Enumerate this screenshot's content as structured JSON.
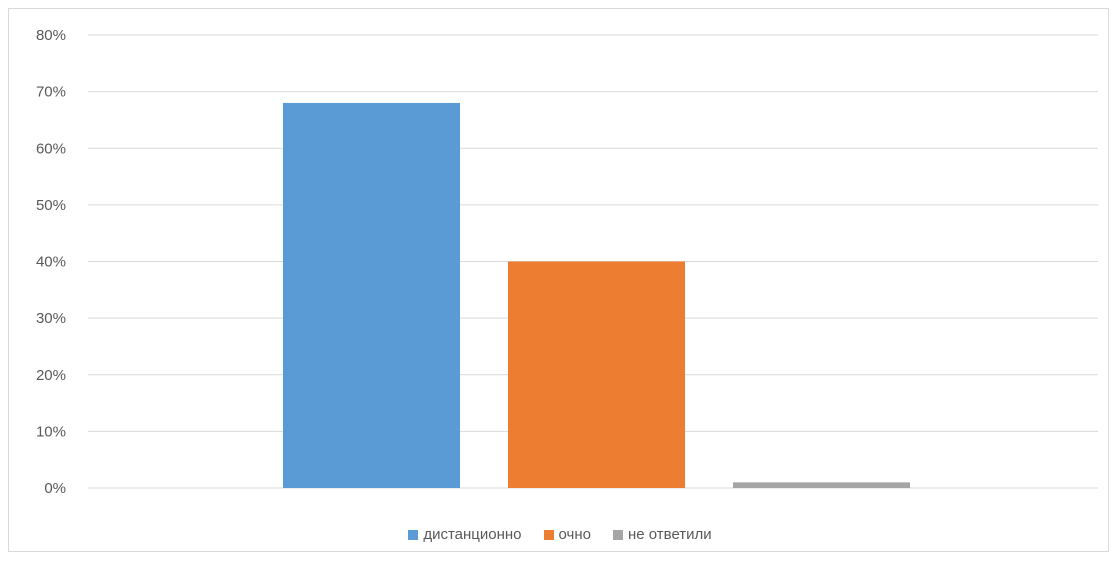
{
  "chart_data": {
    "type": "bar",
    "title": "",
    "xlabel": "",
    "ylabel": "",
    "ylim": [
      0,
      0.8
    ],
    "y_ticks": [
      "0%",
      "10%",
      "20%",
      "30%",
      "40%",
      "50%",
      "60%",
      "70%",
      "80%"
    ],
    "grid": true,
    "legend_position": "bottom",
    "series": [
      {
        "name": "дистанционно",
        "values": [
          0.68
        ],
        "color": "#5b9bd5"
      },
      {
        "name": "очно",
        "values": [
          0.4
        ],
        "color": "#ed7d31"
      },
      {
        "name": "не ответили",
        "values": [
          0.01
        ],
        "color": "#a5a5a5"
      }
    ]
  }
}
